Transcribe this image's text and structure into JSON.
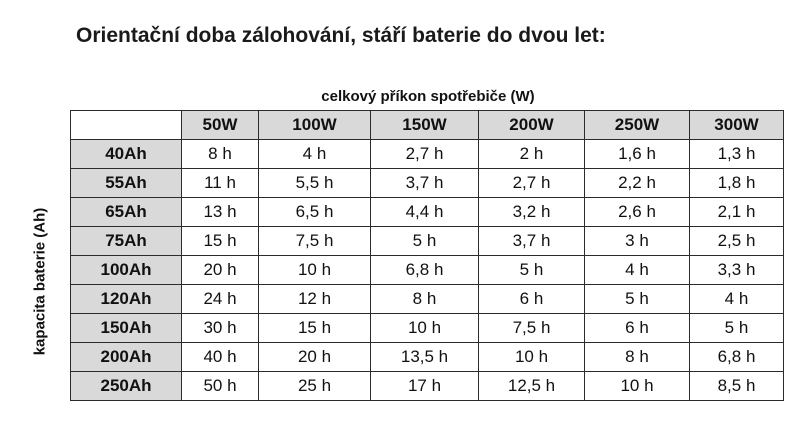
{
  "title": "Orientační doba zálohování, stáří baterie do dvou let:",
  "column_caption": "celkový příkon spotřebiče (W)",
  "row_caption": "kapacita baterie (Ah)",
  "columns": [
    "50W",
    "100W",
    "150W",
    "200W",
    "250W",
    "300W"
  ],
  "rows": [
    {
      "label": "40Ah",
      "values": [
        "8 h",
        "4 h",
        "2,7 h",
        "2 h",
        "1,6 h",
        "1,3 h"
      ]
    },
    {
      "label": "55Ah",
      "values": [
        "11 h",
        "5,5 h",
        "3,7 h",
        "2,7 h",
        "2,2 h",
        "1,8 h"
      ]
    },
    {
      "label": "65Ah",
      "values": [
        "13 h",
        "6,5 h",
        "4,4 h",
        "3,2 h",
        "2,6 h",
        "2,1 h"
      ]
    },
    {
      "label": "75Ah",
      "values": [
        "15 h",
        "7,5 h",
        "5 h",
        "3,7 h",
        "3 h",
        "2,5 h"
      ]
    },
    {
      "label": "100Ah",
      "values": [
        "20 h",
        "10 h",
        "6,8 h",
        "5 h",
        "4 h",
        "3,3 h"
      ]
    },
    {
      "label": "120Ah",
      "values": [
        "24 h",
        "12 h",
        "8 h",
        "6 h",
        "5 h",
        "4 h"
      ]
    },
    {
      "label": "150Ah",
      "values": [
        "30 h",
        "15 h",
        "10 h",
        "7,5 h",
        "6 h",
        "5 h"
      ]
    },
    {
      "label": "200Ah",
      "values": [
        "40 h",
        "20 h",
        "13,5 h",
        "10 h",
        "8 h",
        "6,8 h"
      ]
    },
    {
      "label": "250Ah",
      "values": [
        "50 h",
        "25 h",
        "17 h",
        "12,5 h",
        "10 h",
        "8,5 h"
      ]
    }
  ],
  "colors": {
    "header_fill": "#d9d9d9",
    "border": "#2b2b2b"
  }
}
